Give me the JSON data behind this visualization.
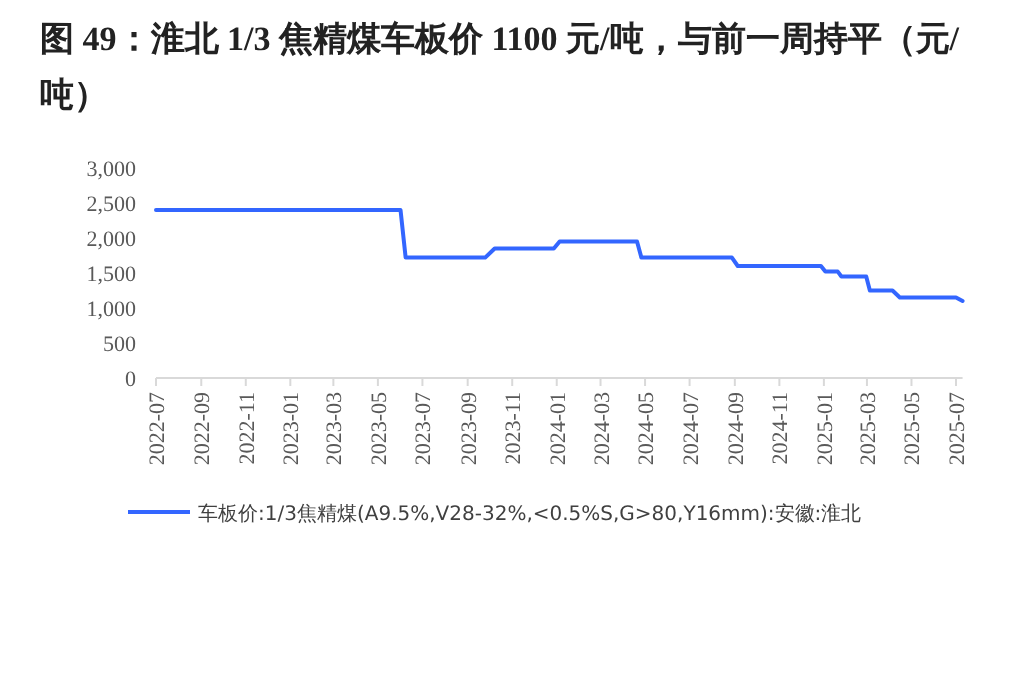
{
  "chart_data": {
    "type": "line",
    "title": "图 49：淮北 1/3 焦精煤车板价 1100 元/吨，与前一周持平（元/吨）",
    "x": [
      "2022-07-01",
      "2023-06-01",
      "2023-06-08",
      "2023-09-25",
      "2023-10-08",
      "2023-12-28",
      "2024-01-05",
      "2024-04-20",
      "2024-04-26",
      "2024-08-28",
      "2024-09-05",
      "2024-12-28",
      "2025-01-03",
      "2025-01-20",
      "2025-01-25",
      "2025-02-28",
      "2025-03-05",
      "2025-04-05",
      "2025-04-15",
      "2025-07-01",
      "2025-07-10"
    ],
    "series": [
      {
        "name": "车板价:1/3焦精煤(A9.5%,V28-32%,<0.5%S,G>80,Y16mm):安徽:淮北",
        "color": "#3366ff",
        "values": [
          2400,
          2400,
          1720,
          1720,
          1850,
          1850,
          1950,
          1950,
          1720,
          1720,
          1600,
          1600,
          1520,
          1520,
          1450,
          1450,
          1250,
          1250,
          1150,
          1150,
          1100
        ]
      }
    ],
    "xlim": [
      "2022-07-01",
      "2025-07-10"
    ],
    "ylim": [
      0,
      3000
    ],
    "xticks": [
      "2022-07",
      "2022-09",
      "2022-11",
      "2023-01",
      "2023-03",
      "2023-05",
      "2023-07",
      "2023-09",
      "2023-11",
      "2024-01",
      "2024-03",
      "2024-05",
      "2024-07",
      "2024-09",
      "2024-11",
      "2025-01",
      "2025-03",
      "2025-05",
      "2025-07"
    ],
    "yticks": [
      {
        "value": 0,
        "label": "0"
      },
      {
        "value": 500,
        "label": "500"
      },
      {
        "value": 1000,
        "label": "1,000"
      },
      {
        "value": 1500,
        "label": "1,500"
      },
      {
        "value": 2000,
        "label": "2,000"
      },
      {
        "value": 2500,
        "label": "2,500"
      },
      {
        "value": 3000,
        "label": "3,000"
      }
    ],
    "grid": false,
    "legend": "bottom",
    "marker": "none",
    "line_style": "solid"
  }
}
